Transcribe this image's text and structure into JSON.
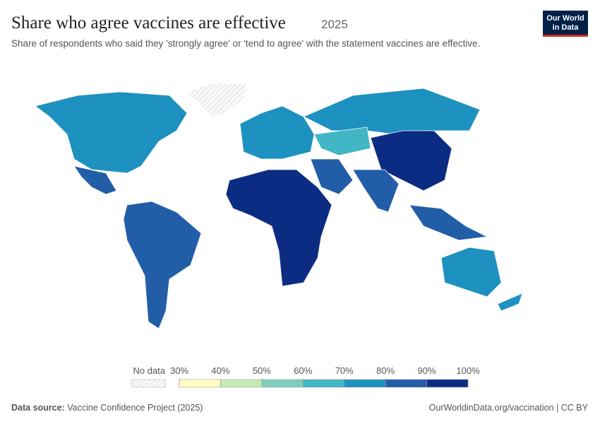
{
  "header": {
    "title": "Share who agree vaccines are effective",
    "year": "2025",
    "subtitle": "Share of respondents who said they 'strongly agree' or 'tend to agree' with the statement vaccines are effective.",
    "logo": [
      "Our World",
      "in Data"
    ]
  },
  "legend": {
    "no_data": "No data",
    "ticks": [
      {
        "value": 30,
        "label": "30%"
      },
      {
        "value": 40,
        "label": "40%"
      },
      {
        "value": 50,
        "label": "50%"
      },
      {
        "value": 60,
        "label": "60%"
      },
      {
        "value": 70,
        "label": "70%"
      },
      {
        "value": 80,
        "label": "80%"
      },
      {
        "value": 90,
        "label": "90%"
      },
      {
        "value": 100,
        "label": "100%"
      }
    ],
    "colors": [
      "#fffcc0",
      "#c7e9b4",
      "#7fcdbb",
      "#41b6c4",
      "#1d91c0",
      "#225ea8",
      "#0c2c84"
    ]
  },
  "footer": {
    "source_label": "Data source:",
    "source": "Vaccine Confidence Project (2025)",
    "url": "OurWorldinData.org/vaccination | CC BY"
  }
}
